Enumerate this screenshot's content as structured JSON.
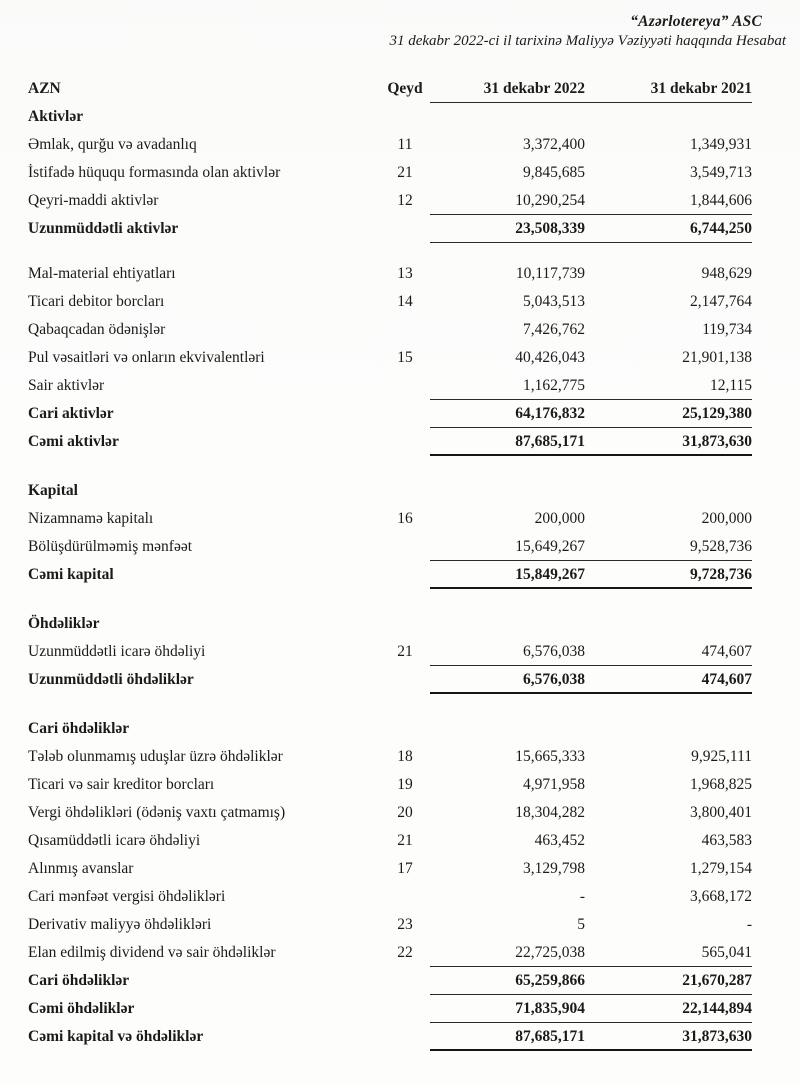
{
  "page_header": {
    "company": "“Azərlotereya” ASC",
    "subtitle": "31 dekabr 2022-ci il tarixinə Maliyyə Vəziyyəti haqqında Hesabat"
  },
  "colors": {
    "paper": "#fdfdfc",
    "ink": "#1a1a1a",
    "rule": "#2a2a2a"
  },
  "table": {
    "columns": {
      "currency": "AZN",
      "note": "Qeyd",
      "period_2022": "31 dekabr 2022",
      "period_2021": "31 dekabr 2021"
    },
    "rows": [
      {
        "label": "Aktivlər",
        "type": "section"
      },
      {
        "label": "Əmlak, qurğu və avadanlıq",
        "note": "11",
        "v2022": "3,372,400",
        "v2021": "1,349,931",
        "type": "item"
      },
      {
        "label": "İstifadə hüququ formasında olan aktivlər",
        "note": "21",
        "v2022": "9,845,685",
        "v2021": "3,549,713",
        "type": "item"
      },
      {
        "label": "Qeyri-maddi aktivlər",
        "note": "12",
        "v2022": "10,290,254",
        "v2021": "1,844,606",
        "type": "item",
        "rule": "normal"
      },
      {
        "label": "Uzunmüddətli aktivlər",
        "v2022": "23,508,339",
        "v2021": "6,744,250",
        "type": "total",
        "rule": "normal"
      },
      {
        "label": "Mal-material ehtiyatları",
        "note": "13",
        "v2022": "10,117,739",
        "v2021": "948,629",
        "type": "item",
        "gap": "sm"
      },
      {
        "label": "Ticari debitor borcları",
        "note": "14",
        "v2022": "5,043,513",
        "v2021": "2,147,764",
        "type": "item"
      },
      {
        "label": "Qabaqcadan ödənişlər",
        "v2022": "7,426,762",
        "v2021": "119,734",
        "type": "item"
      },
      {
        "label": "Pul vəsaitləri və onların ekvivalentləri",
        "note": "15",
        "v2022": "40,426,043",
        "v2021": "21,901,138",
        "type": "item"
      },
      {
        "label": "Sair aktivlər",
        "v2022": "1,162,775",
        "v2021": "12,115",
        "type": "item",
        "rule": "normal"
      },
      {
        "label": "Cari aktivlər",
        "v2022": "64,176,832",
        "v2021": "25,129,380",
        "type": "total",
        "rule": "normal"
      },
      {
        "label": "Cəmi aktivlər",
        "v2022": "87,685,171",
        "v2021": "31,873,630",
        "type": "total",
        "rule": "strong"
      },
      {
        "label": "Kapital",
        "type": "section",
        "gap": "lg"
      },
      {
        "label": "Nizamnamə kapitalı",
        "note": "16",
        "v2022": "200,000",
        "v2021": "200,000",
        "type": "item"
      },
      {
        "label": "Bölüşdürülməmiş mənfəət",
        "v2022": "15,649,267",
        "v2021": "9,528,736",
        "type": "item",
        "rule": "normal"
      },
      {
        "label": "Cəmi kapital",
        "v2022": "15,849,267",
        "v2021": "9,728,736",
        "type": "total",
        "rule": "strong"
      },
      {
        "label": "Öhdəliklər",
        "type": "section",
        "gap": "lg"
      },
      {
        "label": "Uzunmüddətli icarə öhdəliyi",
        "note": "21",
        "v2022": "6,576,038",
        "v2021": "474,607",
        "type": "item",
        "rule": "normal"
      },
      {
        "label": "Uzunmüddətli öhdəliklər",
        "v2022": "6,576,038",
        "v2021": "474,607",
        "type": "total",
        "rule": "strong"
      },
      {
        "label": "Cari öhdəliklər",
        "type": "section",
        "gap": "lg"
      },
      {
        "label": "Tələb olunmamış uduşlar üzrə öhdəliklər",
        "note": "18",
        "v2022": "15,665,333",
        "v2021": "9,925,111",
        "type": "item"
      },
      {
        "label": "Ticari və sair kreditor borcları",
        "note": "19",
        "v2022": "4,971,958",
        "v2021": "1,968,825",
        "type": "item"
      },
      {
        "label": "Vergi öhdəlikləri (ödəniş vaxtı çatmamış)",
        "note": "20",
        "v2022": "18,304,282",
        "v2021": "3,800,401",
        "type": "item"
      },
      {
        "label": "Qısamüddətli icarə öhdəliyi",
        "note": "21",
        "v2022": "463,452",
        "v2021": "463,583",
        "type": "item"
      },
      {
        "label": "Alınmış avanslar",
        "note": "17",
        "v2022": "3,129,798",
        "v2021": "1,279,154",
        "type": "item"
      },
      {
        "label": "Cari mənfəət vergisi öhdəlikləri",
        "v2022": "-",
        "v2021": "3,668,172",
        "type": "item"
      },
      {
        "label": "Derivativ maliyyə öhdəlikləri",
        "note": "23",
        "v2022": "5",
        "v2021": "-",
        "type": "item"
      },
      {
        "label": "Elan edilmiş dividend və sair öhdəliklər",
        "note": "22",
        "v2022": "22,725,038",
        "v2021": "565,041",
        "type": "item",
        "rule": "normal"
      },
      {
        "label": "Cari öhdəliklər",
        "v2022": "65,259,866",
        "v2021": "21,670,287",
        "type": "total",
        "rule": "normal"
      },
      {
        "label": "Cəmi öhdəliklər",
        "v2022": "71,835,904",
        "v2021": "22,144,894",
        "type": "total",
        "rule": "normal"
      },
      {
        "label": "Cəmi kapital və öhdəliklər",
        "v2022": "87,685,171",
        "v2021": "31,873,630",
        "type": "total",
        "rule": "strong"
      }
    ]
  }
}
